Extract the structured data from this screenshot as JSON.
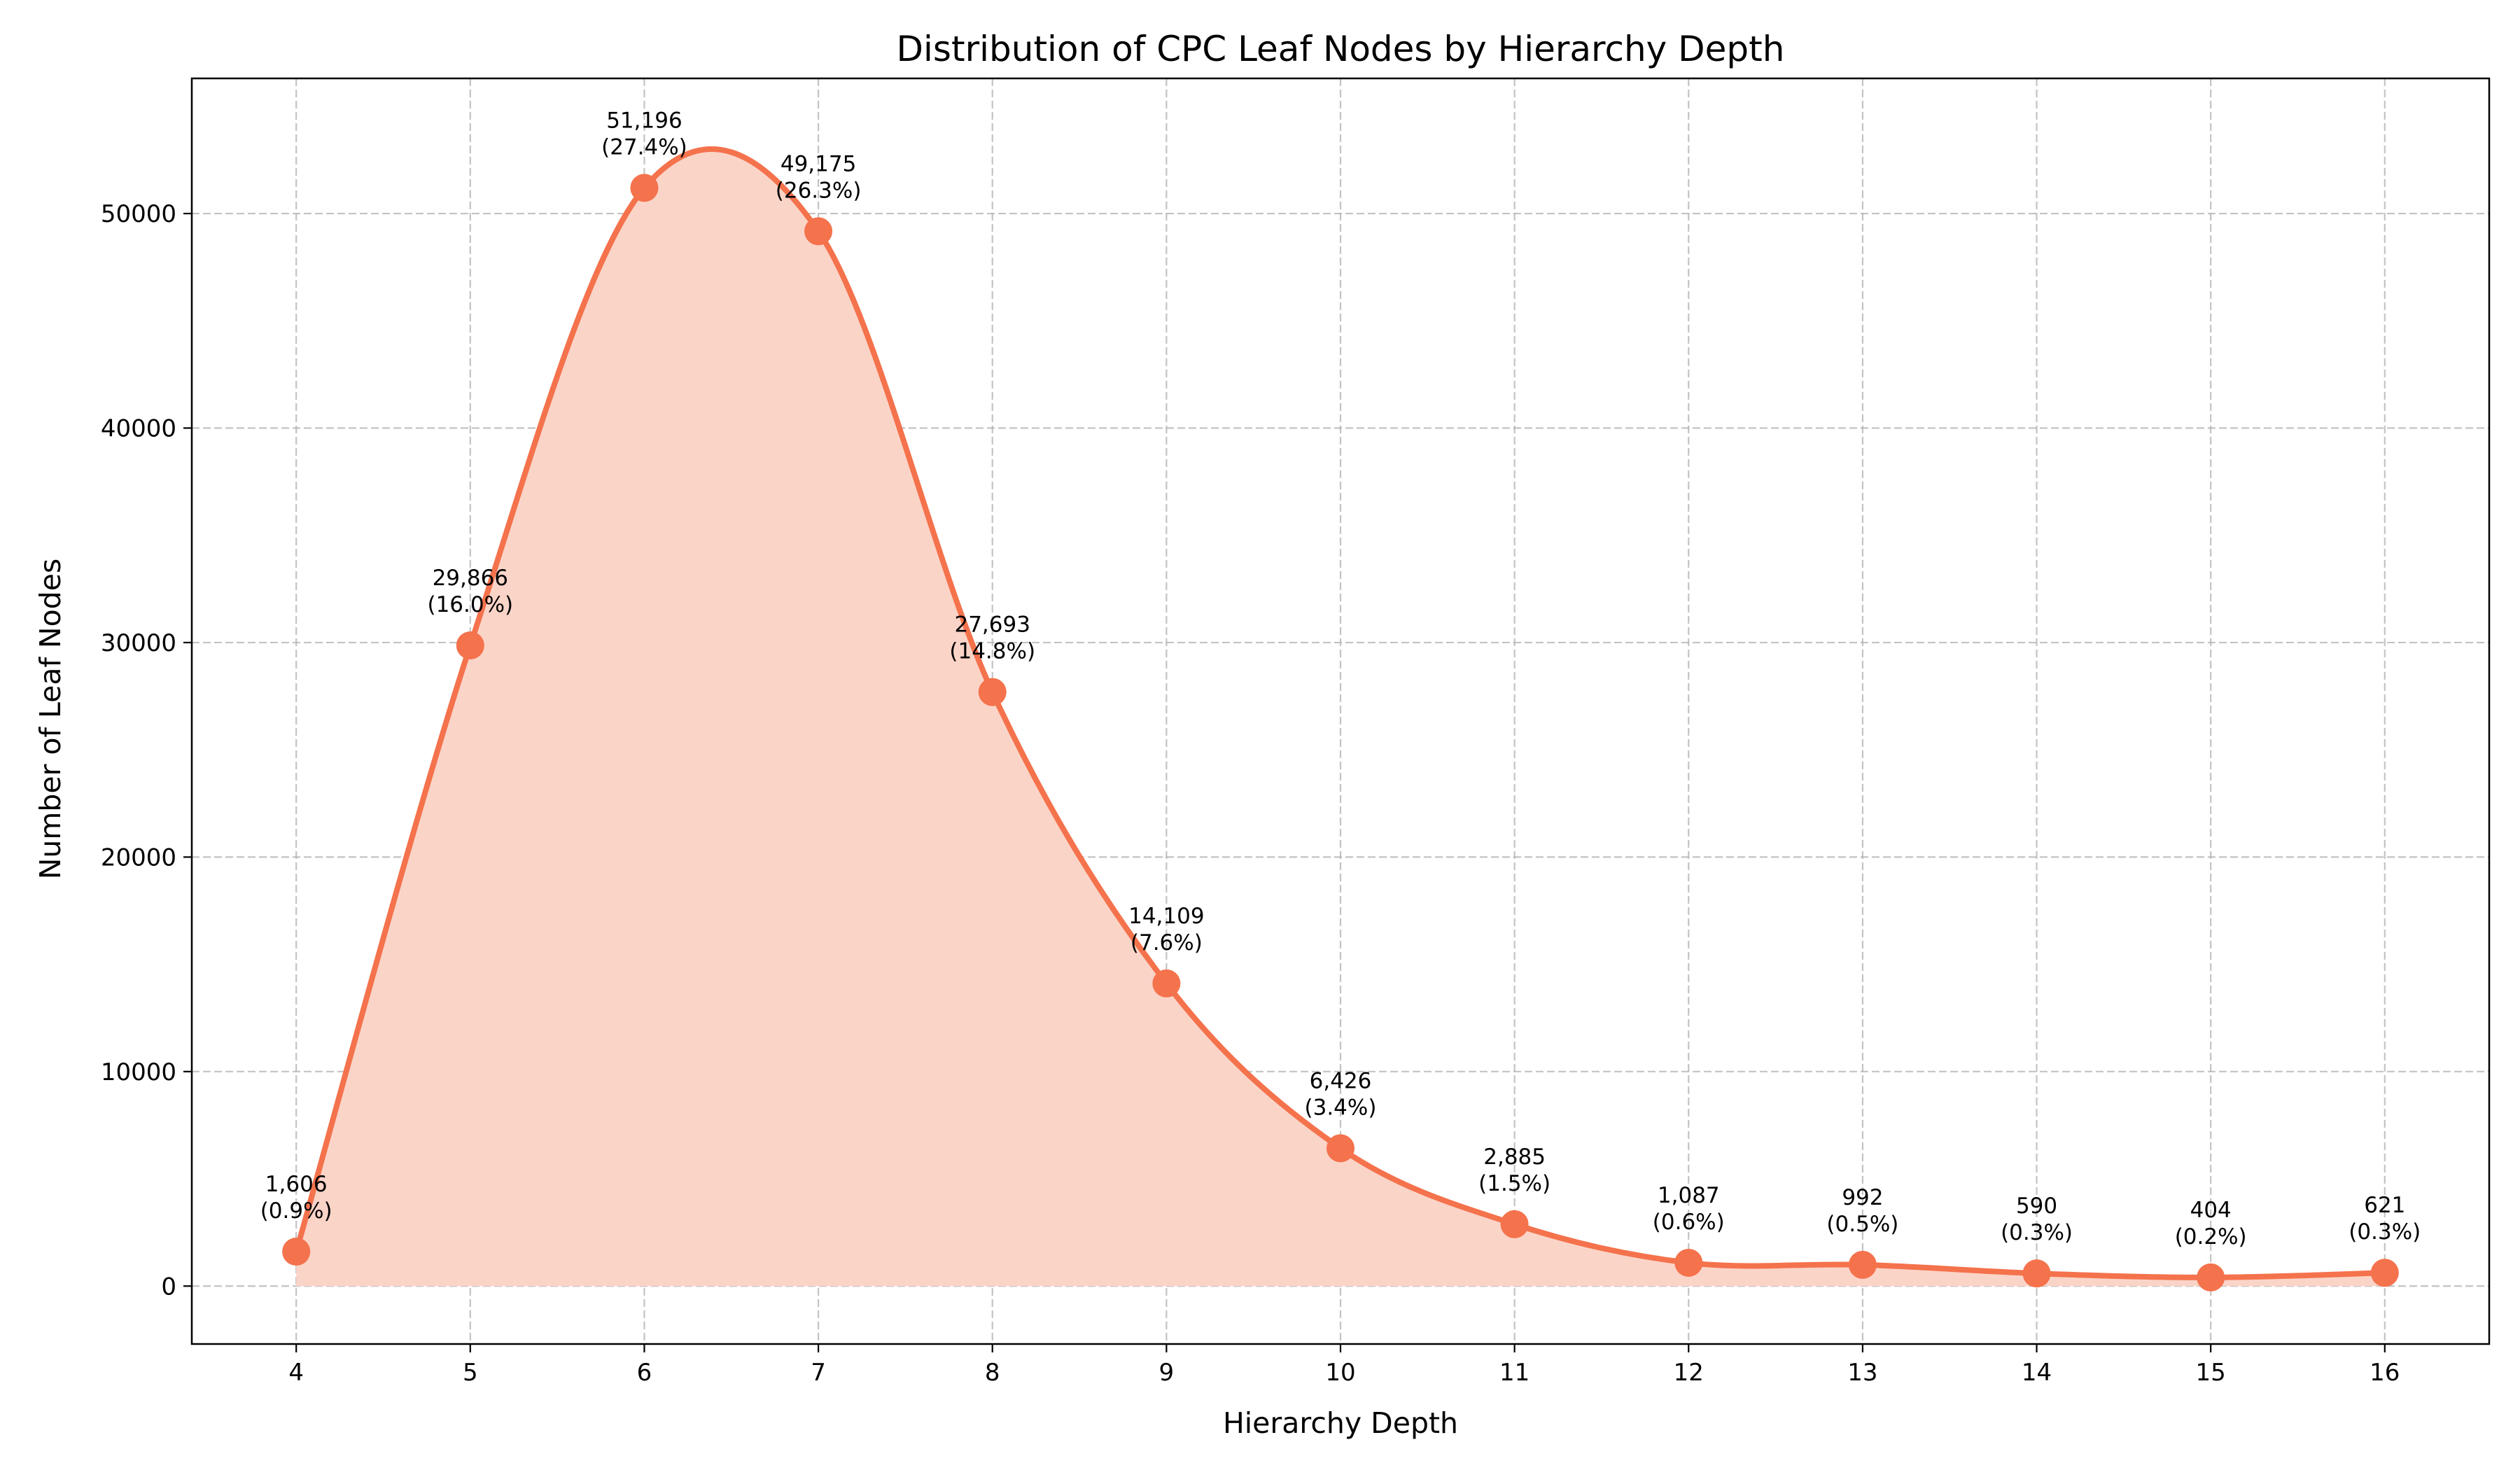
{
  "chart_data": {
    "type": "line",
    "title": "Distribution of CPC Leaf Nodes by Hierarchy Depth",
    "xlabel": "Hierarchy Depth",
    "ylabel": "Number of Leaf Nodes",
    "x": [
      4,
      5,
      6,
      7,
      8,
      9,
      10,
      11,
      12,
      13,
      14,
      15,
      16
    ],
    "values": [
      1606,
      29866,
      51196,
      49175,
      27693,
      14109,
      6426,
      2885,
      1087,
      992,
      590,
      404,
      621
    ],
    "labels": [
      [
        "1,606",
        "(0.9%)"
      ],
      [
        "29,866",
        "(16.0%)"
      ],
      [
        "51,196",
        "(27.4%)"
      ],
      [
        "49,175",
        "(26.3%)"
      ],
      [
        "27,693",
        "(14.8%)"
      ],
      [
        "14,109",
        "(7.6%)"
      ],
      [
        "6,426",
        "(3.4%)"
      ],
      [
        "2,885",
        "(1.5%)"
      ],
      [
        "1,087",
        "(0.6%)"
      ],
      [
        "992",
        "(0.5%)"
      ],
      [
        "590",
        "(0.3%)"
      ],
      [
        "404",
        "(0.2%)"
      ],
      [
        "621",
        "(0.3%)"
      ]
    ],
    "xlim": [
      3.4,
      16.6
    ],
    "ylim": [
      -2700,
      56300
    ],
    "xticks": [
      4,
      5,
      6,
      7,
      8,
      9,
      10,
      11,
      12,
      13,
      14,
      15,
      16
    ],
    "yticks": [
      0,
      10000,
      20000,
      30000,
      40000,
      50000
    ],
    "grid": true,
    "fill_under": true,
    "smooth": true,
    "colors": {
      "line": "#f4724c",
      "fill": "#fbd4c8",
      "marker": "#f4724c"
    }
  }
}
